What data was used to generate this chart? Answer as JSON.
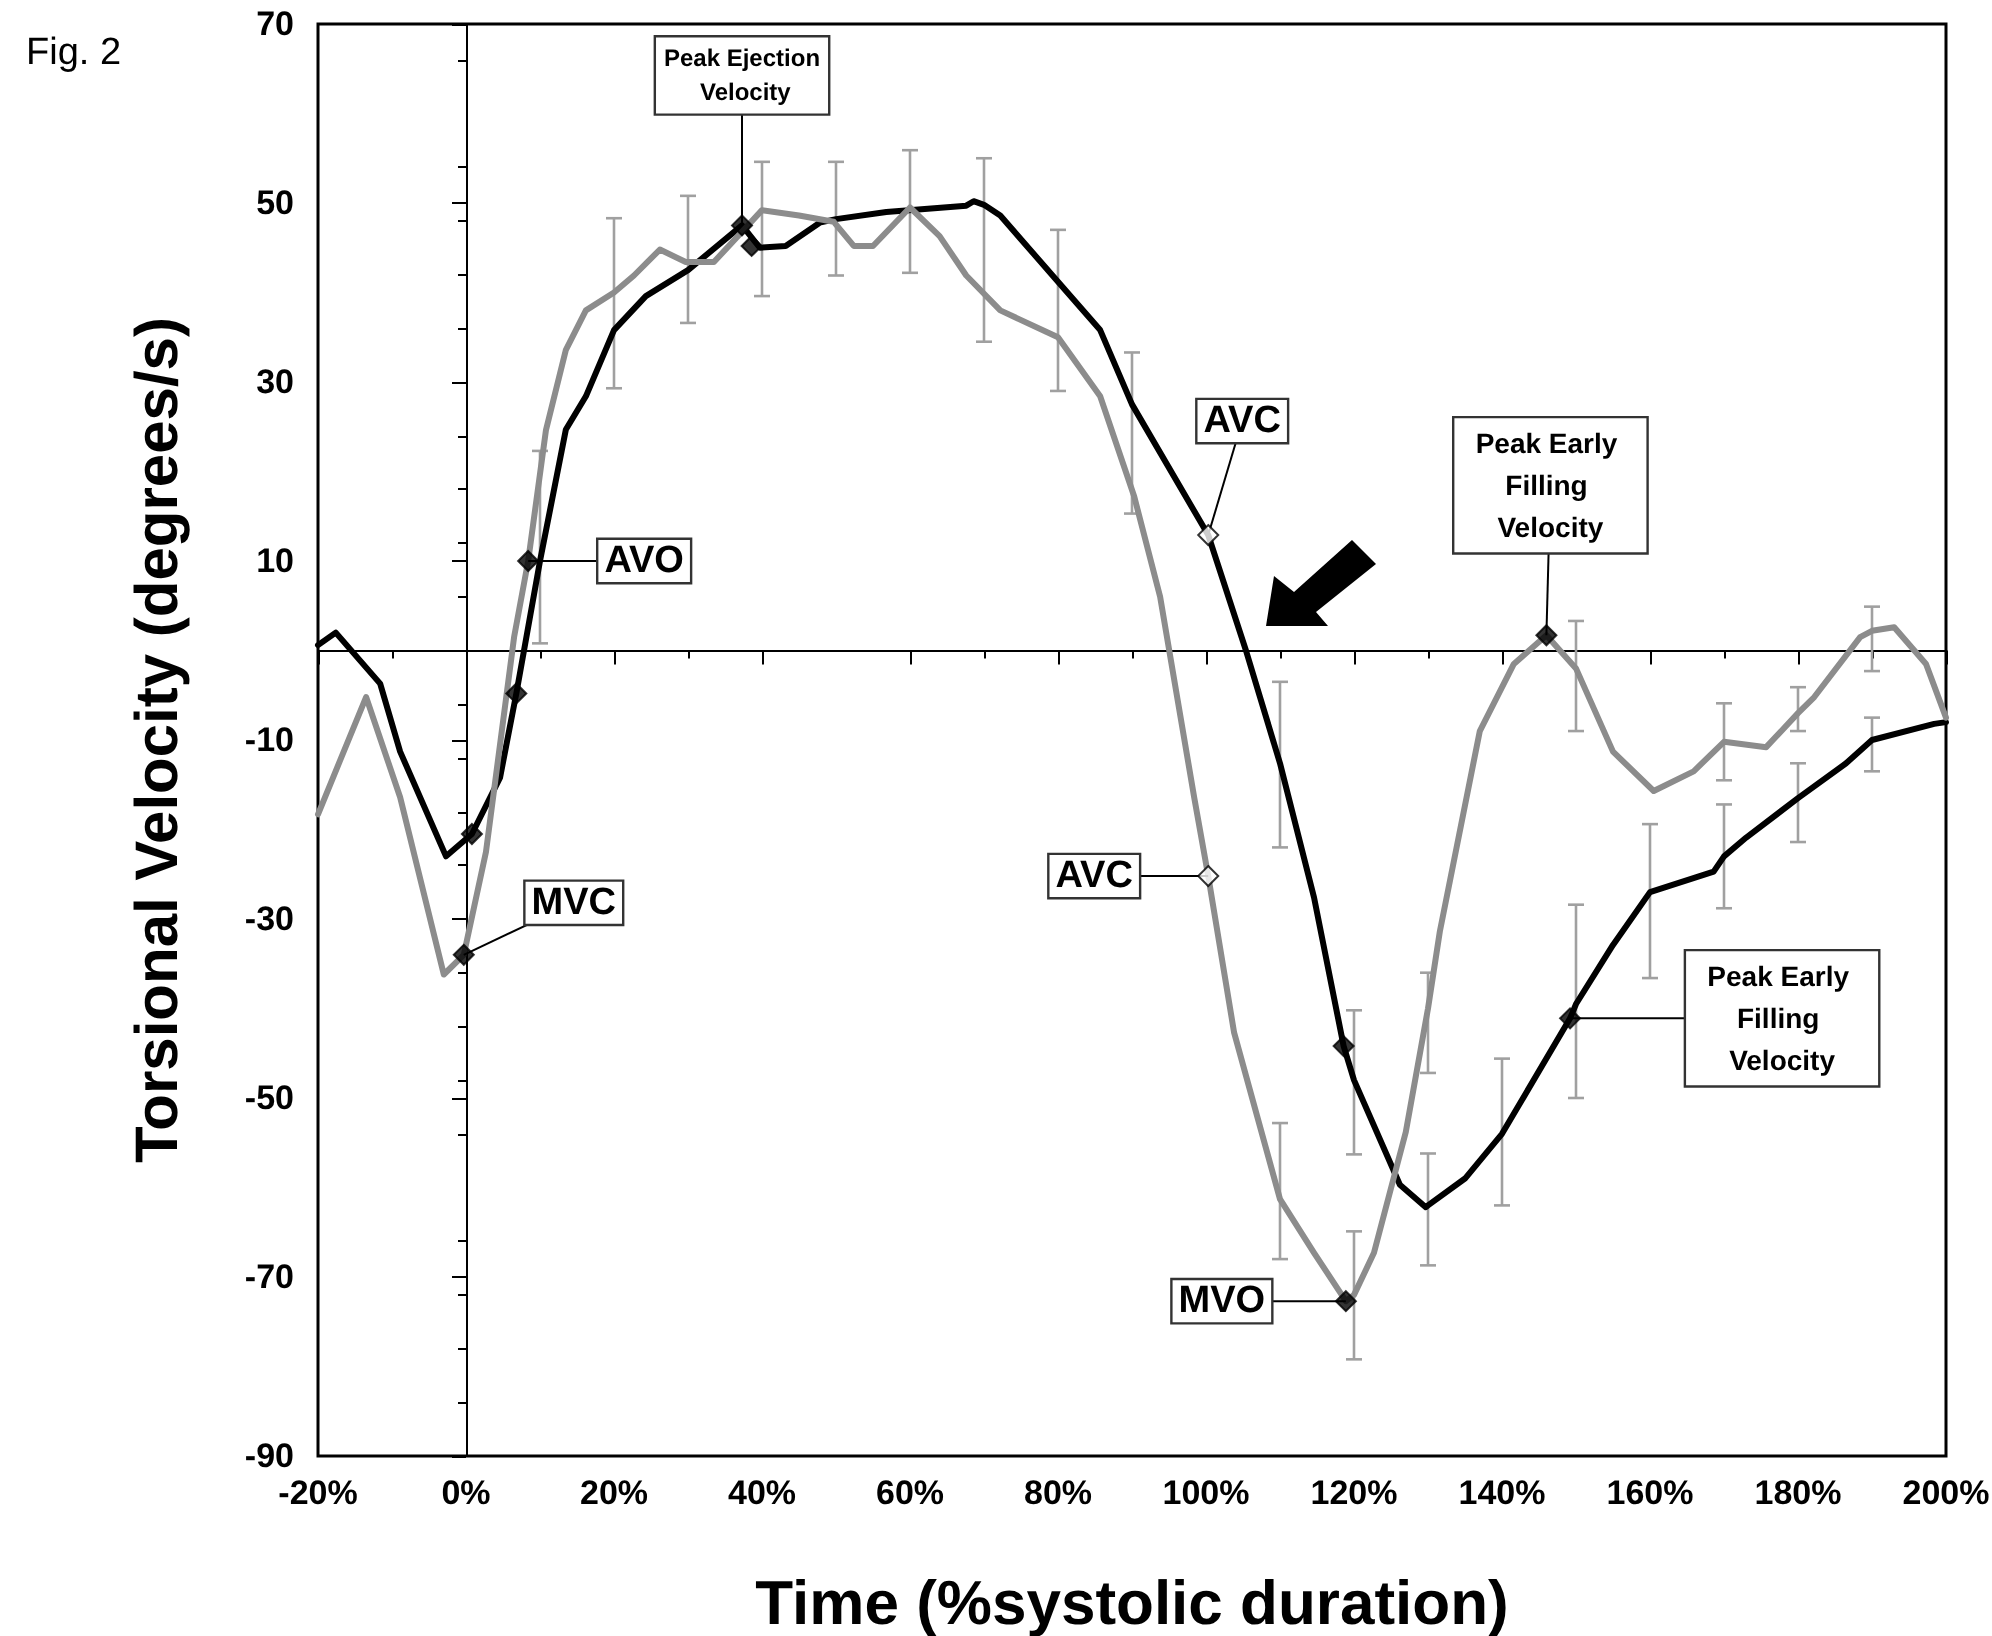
{
  "chart_data": {
    "type": "line",
    "title": "Fig. 2",
    "xlabel": "Time (%systolic duration)",
    "ylabel": "Torsional Velocity (degrees/s)",
    "xlim": [
      -20,
      200
    ],
    "xticks": [
      {
        "value": -20,
        "label": "-20%"
      },
      {
        "value": 0,
        "label": "0%"
      },
      {
        "value": 20,
        "label": "20%"
      },
      {
        "value": 40,
        "label": "40%"
      },
      {
        "value": 60,
        "label": "60%"
      },
      {
        "value": 80,
        "label": "80%"
      },
      {
        "value": 100,
        "label": "100%"
      },
      {
        "value": 120,
        "label": "120%"
      },
      {
        "value": 140,
        "label": "140%"
      },
      {
        "value": 160,
        "label": "160%"
      },
      {
        "value": 180,
        "label": "180%"
      },
      {
        "value": 200,
        "label": "200%"
      }
    ],
    "ylim": [
      -90,
      70
    ],
    "yticks": [
      -90,
      -70,
      -50,
      -30,
      -10,
      10,
      30,
      50,
      70
    ],
    "series": [
      {
        "color": "#000000",
        "x": [
          -20,
          -17.6,
          -11.6,
          -8.9,
          -2.7,
          0.8,
          4.6,
          6.8,
          10,
          13.5,
          16.2,
          20,
          24.3,
          30,
          37.3,
          39.7,
          43.2,
          47.8,
          50,
          56.8,
          67.6,
          68.6,
          70,
          72.2,
          80,
          85.7,
          90,
          100.3,
          105.4,
          107.3,
          110,
          114.6,
          118.6,
          120,
          126.2,
          129.7,
          130,
          135,
          140,
          149.2,
          150,
          155,
          160,
          168.6,
          170,
          173,
          180,
          186.5,
          190,
          198.4,
          200
        ],
        "values": [
          0.6,
          2,
          -3.7,
          -11.3,
          -23,
          -20.5,
          -14.2,
          -4.8,
          10,
          24.7,
          28.4,
          35.8,
          39.6,
          42.5,
          47.5,
          45,
          45.2,
          47.8,
          48.2,
          49,
          49.7,
          50.2,
          49.8,
          48.6,
          41.2,
          35.8,
          27.5,
          12.9,
          0,
          -5.2,
          -12.6,
          -27.6,
          -44.2,
          -48,
          -59.7,
          -62.2,
          -62,
          -59,
          -54,
          -41.1,
          -39.5,
          -32.9,
          -27,
          -24.7,
          -23,
          -20.9,
          -16.5,
          -12.6,
          -10,
          -8.2,
          -8
        ],
        "errors": [
          null,
          null,
          null,
          null,
          null,
          null,
          null,
          null,
          [
            0.8,
            22.3
          ],
          null,
          null,
          null,
          null,
          [
            36.6,
            50.8
          ],
          null,
          null,
          null,
          null,
          [
            41.9,
            54.6
          ],
          null,
          null,
          null,
          [
            34.5,
            55
          ],
          null,
          null,
          null,
          [
            15.3,
            33.3
          ],
          null,
          null,
          null,
          [
            -22,
            -3.5
          ],
          null,
          null,
          [
            -56.3,
            -40.2
          ],
          null,
          null,
          [
            -68.7,
            -56.2
          ],
          null,
          [
            -62,
            -45.6
          ],
          null,
          [
            -50,
            -28.4
          ],
          null,
          [
            -36.6,
            -19.4
          ],
          null,
          [
            -28.8,
            -17.2
          ],
          null,
          [
            -21.4,
            -12.6
          ],
          null,
          [
            -13.5,
            -7.5
          ],
          null,
          null
        ]
      },
      {
        "color": "#8c8c8c",
        "x": [
          -20,
          -13.5,
          -8.9,
          -3,
          -0.3,
          2.7,
          6.5,
          8.4,
          10.8,
          13.5,
          16.2,
          20,
          22.7,
          26.2,
          29.7,
          33.5,
          40,
          45,
          49.7,
          52.4,
          55,
          60,
          64,
          67.6,
          72.2,
          80,
          85.7,
          90.3,
          93.8,
          98.4,
          100.3,
          103.8,
          110,
          114.6,
          118.9,
          120,
          122.7,
          127,
          130,
          131.6,
          137,
          141.6,
          146,
          150,
          155,
          160.5,
          165.9,
          170,
          175.7,
          180,
          182.2,
          188.4,
          190,
          193,
          197.3,
          200
        ],
        "values": [
          -18.3,
          -5.2,
          -16.4,
          -36.2,
          -34,
          -22.5,
          1.5,
          10,
          24.6,
          33.6,
          38,
          40,
          41.9,
          44.8,
          43.4,
          43.4,
          49.2,
          48.6,
          47.9,
          45.2,
          45.2,
          49.5,
          46.3,
          41.9,
          38,
          35,
          28.4,
          17.2,
          6,
          -16.4,
          -25.2,
          -42.7,
          -61.3,
          -67.3,
          -72.7,
          -72,
          -67.3,
          -53.8,
          -40,
          -31.4,
          -9,
          -1.5,
          1.7,
          -2,
          -11.3,
          -15.7,
          -13.5,
          -10.2,
          -10.8,
          -7,
          -5.2,
          1.5,
          2.2,
          2.6,
          -1.5,
          -7.5
        ],
        "errors": [
          null,
          null,
          null,
          null,
          null,
          null,
          null,
          null,
          null,
          null,
          null,
          [
            29.3,
            48.3
          ],
          null,
          null,
          null,
          null,
          [
            39.6,
            54.6
          ],
          null,
          null,
          null,
          null,
          [
            42.2,
            55.9
          ],
          null,
          null,
          null,
          [
            29,
            47
          ],
          null,
          null,
          null,
          null,
          null,
          null,
          [
            -68,
            -52.8
          ],
          null,
          null,
          [
            -79.2,
            -64.9
          ],
          null,
          null,
          [
            -47.2,
            -36
          ],
          null,
          null,
          null,
          null,
          [
            -9,
            3.3
          ],
          null,
          null,
          null,
          [
            -14.5,
            -5.9
          ],
          null,
          [
            -9,
            -4.1
          ],
          null,
          null,
          [
            -2.3,
            4.9
          ],
          null,
          null,
          null
        ]
      },
      {
        "type": "scatter",
        "marker": "diamond",
        "color": "#000000",
        "x": [
          6.8,
          0.8,
          -0.3,
          8.4,
          37.3,
          38.6,
          118.6,
          118.9,
          146,
          149.2
        ],
        "values": [
          -4.8,
          -20.5,
          -34,
          10,
          47.5,
          45.2,
          -44.2,
          -72.7,
          1.7,
          -41.1
        ]
      },
      {
        "type": "scatter",
        "marker": "diamond",
        "color": "#ffffff",
        "x": [
          100.3,
          100.3
        ],
        "values": [
          12.9,
          -25.2
        ]
      }
    ],
    "annotations": [
      {
        "text": "Peak Ejection Velocity",
        "x": 37.3,
        "y": 47.5
      },
      {
        "text": "AVO",
        "x": 8.4,
        "y": 10
      },
      {
        "text": "MVC",
        "x": -0.3,
        "y": -34
      },
      {
        "text": "AVC",
        "x": 100.3,
        "y": 12.9
      },
      {
        "text": "AVC",
        "x": 100.3,
        "y": -25.2
      },
      {
        "text": "MVO",
        "x": 118.9,
        "y": -72.7
      },
      {
        "text": "Peak Early Filling Velocity",
        "x": 146,
        "y": 1.7
      },
      {
        "text": "Peak Early Filling Velocity",
        "x": 149.2,
        "y": -41.1
      }
    ]
  }
}
